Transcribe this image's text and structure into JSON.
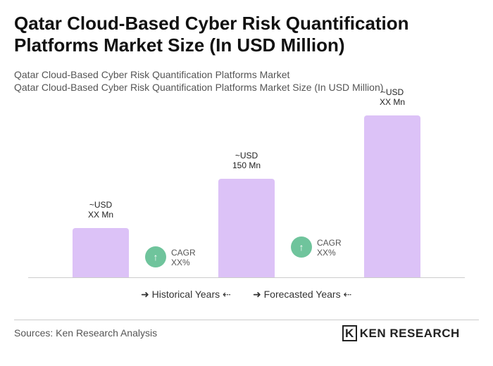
{
  "chart_data": {
    "type": "bar",
    "title": "Qatar Cloud-Based Cyber Risk Quantification Platforms Market Size (In USD Million)",
    "subtitle": [
      "Qatar Cloud-Based Cyber Risk Quantification Platforms Market",
      "Qatar Cloud-Based Cyber Risk Quantification Platforms Market Size (In USD Million)"
    ],
    "categories": [
      null,
      null,
      null
    ],
    "values": [
      75,
      150,
      246
    ],
    "value_labels": [
      "~USD\nXX Mn",
      "~USD\n150 Mn",
      "~USD\nXX Mn"
    ],
    "color": "#dcc2f7",
    "annotations": [
      "CAGR\nXX%",
      "CAGR\nXX%"
    ],
    "legend": [
      "Historical Years",
      "Forecasted Years"
    ],
    "source": "Sources: Ken Research Analysis",
    "logo": "KEN RESEARCH"
  }
}
